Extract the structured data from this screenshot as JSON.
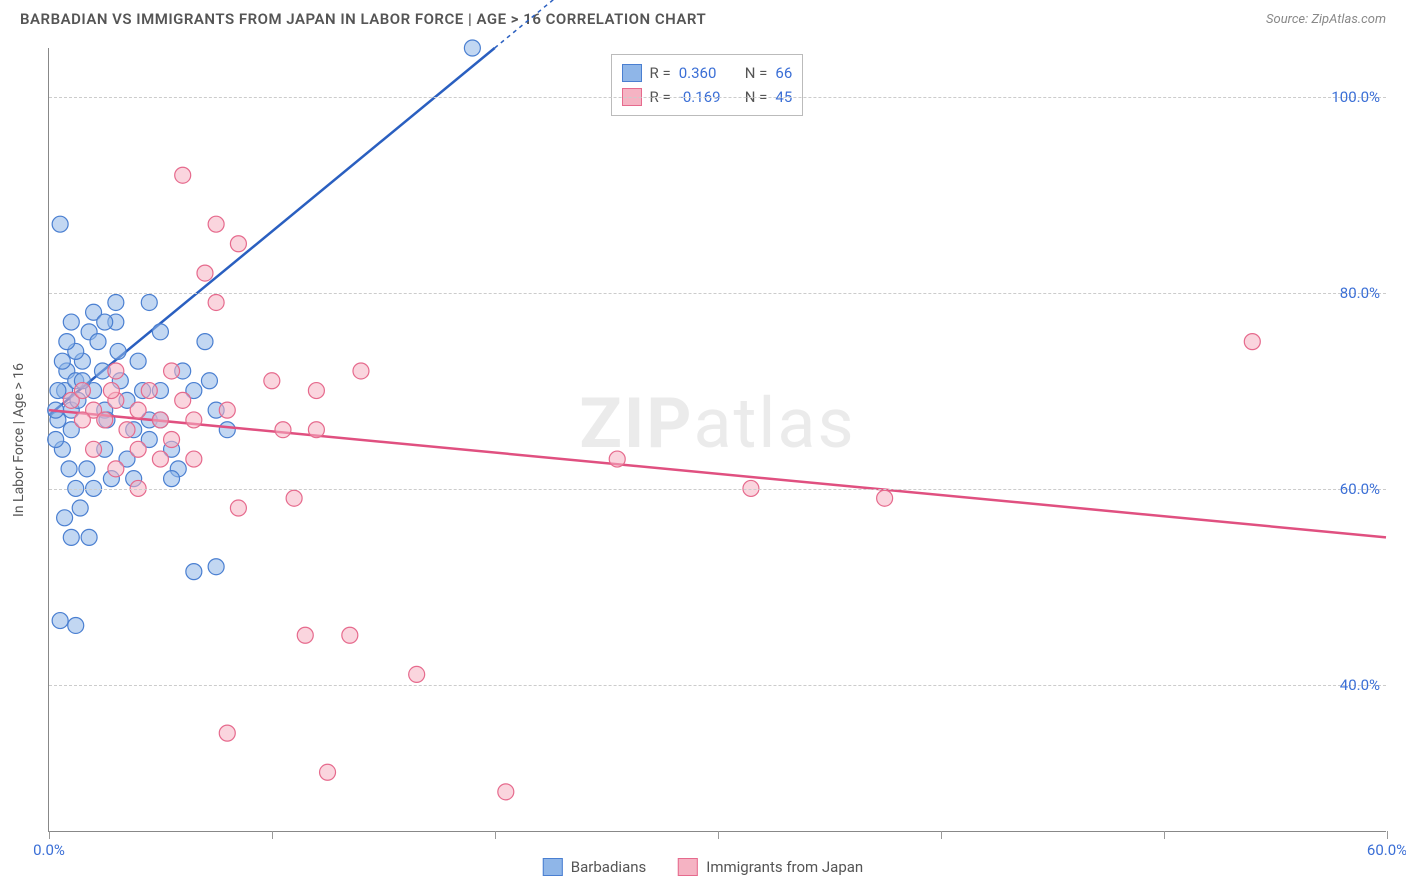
{
  "header": {
    "title": "BARBADIAN VS IMMIGRANTS FROM JAPAN IN LABOR FORCE | AGE > 16 CORRELATION CHART",
    "source_label": "Source: ",
    "source_value": "ZipAtlas.com"
  },
  "chart": {
    "type": "scatter",
    "y_axis_title": "In Labor Force | Age > 16",
    "xlim": [
      0,
      60
    ],
    "ylim": [
      25,
      105
    ],
    "xticks": [
      0,
      10,
      20,
      30,
      40,
      50,
      60
    ],
    "xlabels_shown": {
      "0": "0.0%",
      "60": "60.0%"
    },
    "yticks": [
      40,
      60,
      80,
      100
    ],
    "ylabels": {
      "40": "40.0%",
      "60": "60.0%",
      "80": "80.0%",
      "100": "100.0%"
    },
    "grid_color": "#cccccc",
    "axis_color": "#888888",
    "background_color": "#ffffff",
    "label_color": "#3b6fd6",
    "axis_title_color": "#555555",
    "marker_radius": 8,
    "marker_opacity": 0.55,
    "series": [
      {
        "name": "Barbadians",
        "fill": "#8fb6e8",
        "stroke": "#4a7fd1",
        "line_color": "#2a5fc0",
        "line_width": 2.5,
        "R": "0.360",
        "N": "66",
        "trend": {
          "x1": 0,
          "y1": 67.5,
          "x2": 20,
          "y2": 105,
          "dashed_x2": 26
        },
        "points": [
          [
            0.5,
            87
          ],
          [
            0.4,
            67
          ],
          [
            0.7,
            70
          ],
          [
            0.8,
            72
          ],
          [
            1.0,
            68
          ],
          [
            1.2,
            71
          ],
          [
            1.0,
            66
          ],
          [
            1.3,
            69
          ],
          [
            1.5,
            73
          ],
          [
            1.8,
            76
          ],
          [
            2.0,
            78
          ],
          [
            2.2,
            75
          ],
          [
            2.0,
            70
          ],
          [
            2.4,
            72
          ],
          [
            2.5,
            68
          ],
          [
            2.6,
            67
          ],
          [
            3.0,
            77
          ],
          [
            3.1,
            74
          ],
          [
            3.2,
            71
          ],
          [
            3.5,
            69
          ],
          [
            3.8,
            66
          ],
          [
            3.5,
            63
          ],
          [
            4.0,
            73
          ],
          [
            4.2,
            70
          ],
          [
            4.5,
            67
          ],
          [
            0.6,
            64
          ],
          [
            0.9,
            62
          ],
          [
            1.2,
            60
          ],
          [
            1.4,
            58
          ],
          [
            1.7,
            62
          ],
          [
            2.0,
            60
          ],
          [
            2.5,
            64
          ],
          [
            2.8,
            61
          ],
          [
            3.8,
            61
          ],
          [
            0.7,
            57
          ],
          [
            1.8,
            55
          ],
          [
            1.0,
            55
          ],
          [
            0.5,
            46.5
          ],
          [
            1.2,
            46
          ],
          [
            6.5,
            51.5
          ],
          [
            7.5,
            52
          ],
          [
            5.0,
            70
          ],
          [
            5.0,
            76
          ],
          [
            6.0,
            72
          ],
          [
            6.5,
            70
          ],
          [
            4.5,
            65
          ],
          [
            5.5,
            64
          ],
          [
            5.8,
            62
          ],
          [
            7.0,
            75
          ],
          [
            7.2,
            71
          ],
          [
            7.5,
            68
          ],
          [
            8.0,
            66
          ],
          [
            5.0,
            67
          ],
          [
            5.5,
            61
          ],
          [
            1.0,
            77
          ],
          [
            1.2,
            74
          ],
          [
            1.5,
            71
          ],
          [
            0.8,
            75
          ],
          [
            0.6,
            73
          ],
          [
            0.4,
            70
          ],
          [
            0.3,
            68
          ],
          [
            0.3,
            65
          ],
          [
            19.0,
            105
          ],
          [
            3.0,
            79
          ],
          [
            2.5,
            77
          ],
          [
            4.5,
            79
          ]
        ]
      },
      {
        "name": "Immigants from Japan",
        "display_name": "Immigrants from Japan",
        "fill": "#f5b3c3",
        "stroke": "#e66a8d",
        "line_color": "#e05080",
        "line_width": 2.5,
        "R": "-0.169",
        "N": "45",
        "trend": {
          "x1": 0,
          "y1": 68,
          "x2": 60,
          "y2": 55
        },
        "points": [
          [
            1.0,
            69
          ],
          [
            1.5,
            70
          ],
          [
            2.0,
            68
          ],
          [
            2.5,
            67
          ],
          [
            3.0,
            69
          ],
          [
            3.5,
            66
          ],
          [
            4.0,
            68
          ],
          [
            4.5,
            70
          ],
          [
            5.0,
            67
          ],
          [
            5.5,
            65
          ],
          [
            6.0,
            69
          ],
          [
            6.5,
            67
          ],
          [
            7.0,
            82
          ],
          [
            7.5,
            79
          ],
          [
            8.0,
            68
          ],
          [
            6.0,
            92
          ],
          [
            8.5,
            85
          ],
          [
            7.5,
            87
          ],
          [
            10.0,
            71
          ],
          [
            10.5,
            66
          ],
          [
            12.0,
            70
          ],
          [
            14.0,
            72
          ],
          [
            12.0,
            66
          ],
          [
            11.0,
            59
          ],
          [
            8.5,
            58
          ],
          [
            11.5,
            45
          ],
          [
            13.5,
            45
          ],
          [
            8.0,
            35
          ],
          [
            12.5,
            31
          ],
          [
            16.5,
            41
          ],
          [
            20.5,
            29
          ],
          [
            25.5,
            63
          ],
          [
            31.5,
            60
          ],
          [
            37.5,
            59
          ],
          [
            54.0,
            75
          ],
          [
            3.0,
            72
          ],
          [
            4.0,
            64
          ],
          [
            5.5,
            72
          ],
          [
            2.0,
            64
          ],
          [
            3.0,
            62
          ],
          [
            4.0,
            60
          ],
          [
            5.0,
            63
          ],
          [
            1.5,
            67
          ],
          [
            2.8,
            70
          ],
          [
            6.5,
            63
          ]
        ]
      }
    ],
    "legend_top": {
      "rows": [
        {
          "swatch_fill": "#8fb6e8",
          "swatch_stroke": "#4a7fd1",
          "r_label": "R =",
          "r_value": "0.360",
          "n_label": "N =",
          "n_value": "66"
        },
        {
          "swatch_fill": "#f5b3c3",
          "swatch_stroke": "#e66a8d",
          "r_label": "R =",
          "r_value": "-0.169",
          "n_label": "N =",
          "n_value": "45"
        }
      ]
    },
    "legend_bottom": [
      {
        "swatch_fill": "#8fb6e8",
        "swatch_stroke": "#4a7fd1",
        "label": "Barbadians"
      },
      {
        "swatch_fill": "#f5b3c3",
        "swatch_stroke": "#e66a8d",
        "label": "Immigrants from Japan"
      }
    ],
    "watermark": {
      "text1": "ZIP",
      "text2": "atlas"
    }
  }
}
